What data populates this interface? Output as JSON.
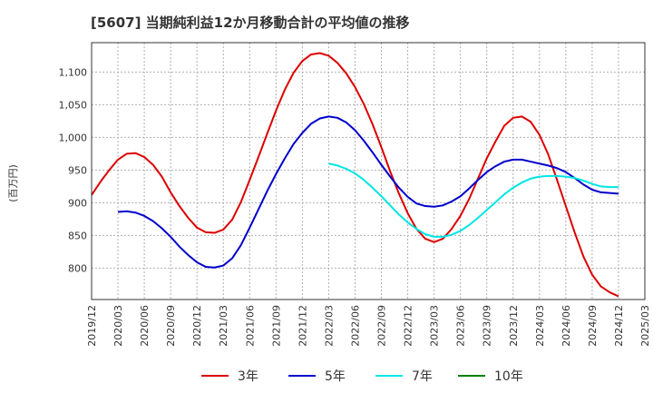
{
  "chart_data": {
    "type": "line",
    "title": "[5607]  当期純利益12か月移動合計の平均値の推移",
    "ylabel": "(百万円)",
    "xlabel": "",
    "x_ticks": [
      "2019/12",
      "2020/03",
      "2020/06",
      "2020/09",
      "2020/12",
      "2021/03",
      "2021/06",
      "2021/09",
      "2021/12",
      "2022/03",
      "2022/06",
      "2022/09",
      "2022/12",
      "2023/03",
      "2023/06",
      "2023/09",
      "2023/12",
      "2024/03",
      "2024/06",
      "2024/09",
      "2024/12",
      "2025/03"
    ],
    "y_ticks": [
      800,
      850,
      900,
      950,
      1000,
      1050,
      1100
    ],
    "y_tick_labels": [
      "800",
      "850",
      "900",
      "950",
      "1,000",
      "1,050",
      "1,100"
    ],
    "ylim": [
      752,
      1145
    ],
    "x_range_months": [
      0,
      63
    ],
    "grid": true,
    "legend_position": "bottom",
    "series": [
      {
        "name": "3年",
        "color": "#dd0000",
        "x": [
          "2019/12",
          "2020/01",
          "2020/02",
          "2020/03",
          "2020/04",
          "2020/05",
          "2020/06",
          "2020/07",
          "2020/08",
          "2020/09",
          "2020/10",
          "2020/11",
          "2020/12",
          "2021/01",
          "2021/02",
          "2021/03",
          "2021/04",
          "2021/05",
          "2021/06",
          "2021/07",
          "2021/08",
          "2021/09",
          "2021/10",
          "2021/11",
          "2021/12",
          "2022/01",
          "2022/02",
          "2022/03",
          "2022/04",
          "2022/05",
          "2022/06",
          "2022/07",
          "2022/08",
          "2022/09",
          "2022/10",
          "2022/11",
          "2022/12",
          "2023/01",
          "2023/02",
          "2023/03",
          "2023/04",
          "2023/05",
          "2023/06",
          "2023/07",
          "2023/08",
          "2023/09",
          "2023/10",
          "2023/11",
          "2023/12",
          "2024/01",
          "2024/02",
          "2024/03",
          "2024/04",
          "2024/05",
          "2024/06",
          "2024/07",
          "2024/08",
          "2024/09",
          "2024/10",
          "2024/11",
          "2024/12"
        ],
        "values": [
          912,
          932,
          950,
          966,
          975,
          976,
          970,
          958,
          940,
          916,
          895,
          877,
          862,
          855,
          854,
          859,
          874,
          901,
          935,
          970,
          1006,
          1041,
          1073,
          1099,
          1117,
          1127,
          1129,
          1125,
          1114,
          1098,
          1077,
          1051,
          1020,
          985,
          948,
          914,
          884,
          860,
          845,
          840,
          845,
          860,
          880,
          906,
          937,
          968,
          994,
          1018,
          1030,
          1032,
          1024,
          1004,
          974,
          935,
          895,
          855,
          818,
          790,
          772,
          763,
          757
        ]
      },
      {
        "name": "5年",
        "color": "#0000cc",
        "x": [
          "2020/03",
          "2020/04",
          "2020/05",
          "2020/06",
          "2020/07",
          "2020/08",
          "2020/09",
          "2020/10",
          "2020/11",
          "2020/12",
          "2021/01",
          "2021/02",
          "2021/03",
          "2021/04",
          "2021/05",
          "2021/06",
          "2021/07",
          "2021/08",
          "2021/09",
          "2021/10",
          "2021/11",
          "2021/12",
          "2022/01",
          "2022/02",
          "2022/03",
          "2022/04",
          "2022/05",
          "2022/06",
          "2022/07",
          "2022/08",
          "2022/09",
          "2022/10",
          "2022/11",
          "2022/12",
          "2023/01",
          "2023/02",
          "2023/03",
          "2023/04",
          "2023/05",
          "2023/06",
          "2023/07",
          "2023/08",
          "2023/09",
          "2023/10",
          "2023/11",
          "2023/12",
          "2024/01",
          "2024/02",
          "2024/03",
          "2024/04",
          "2024/05",
          "2024/06",
          "2024/07",
          "2024/08",
          "2024/09",
          "2024/10",
          "2024/11",
          "2024/12"
        ],
        "values": [
          886,
          887,
          885,
          880,
          872,
          861,
          848,
          833,
          820,
          809,
          802,
          801,
          804,
          815,
          835,
          862,
          890,
          918,
          944,
          968,
          990,
          1007,
          1021,
          1029,
          1032,
          1030,
          1023,
          1011,
          995,
          977,
          958,
          940,
          923,
          909,
          899,
          895,
          894,
          896,
          902,
          910,
          922,
          935,
          947,
          956,
          963,
          966,
          966,
          963,
          960,
          957,
          953,
          947,
          938,
          928,
          920,
          916,
          915,
          914
        ]
      },
      {
        "name": "7年",
        "color": "#00e5e5",
        "x": [
          "2022/03",
          "2022/04",
          "2022/05",
          "2022/06",
          "2022/07",
          "2022/08",
          "2022/09",
          "2022/10",
          "2022/11",
          "2022/12",
          "2023/01",
          "2023/02",
          "2023/03",
          "2023/04",
          "2023/05",
          "2023/06",
          "2023/07",
          "2023/08",
          "2023/09",
          "2023/10",
          "2023/11",
          "2023/12",
          "2024/01",
          "2024/02",
          "2024/03",
          "2024/04",
          "2024/05",
          "2024/06",
          "2024/07",
          "2024/08",
          "2024/09",
          "2024/10",
          "2024/11",
          "2024/12"
        ],
        "values": [
          960,
          957,
          952,
          945,
          935,
          923,
          910,
          896,
          882,
          870,
          860,
          852,
          848,
          848,
          851,
          857,
          866,
          877,
          889,
          901,
          913,
          923,
          931,
          937,
          940,
          941,
          941,
          940,
          938,
          934,
          929,
          925,
          924,
          924
        ]
      },
      {
        "name": "10年",
        "color": "#008000",
        "x": [],
        "values": []
      }
    ]
  }
}
